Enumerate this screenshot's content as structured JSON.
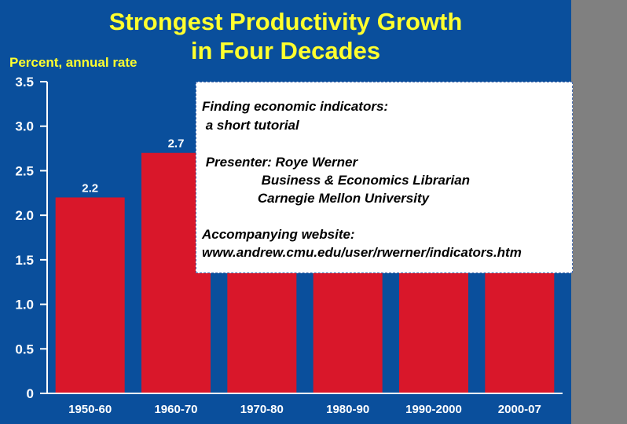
{
  "chart_data": {
    "type": "bar",
    "title": "Strongest Productivity Growth in Four Decades",
    "title_lines": [
      "Strongest Productivity Growth",
      "in Four Decades"
    ],
    "ylabel": "Percent, annual rate",
    "xlabel": "",
    "categories": [
      "1950-60",
      "1960-70",
      "1970-80",
      "1980-90",
      "1990-2000",
      "2000-07"
    ],
    "values": [
      2.2,
      2.7,
      1.4,
      1.4,
      1.4,
      1.4
    ],
    "value_labels": [
      "2.2",
      "2.7",
      "",
      "",
      "",
      ""
    ],
    "ylim": [
      0,
      3.5
    ],
    "yticks": [
      {
        "v": 0,
        "t": "0"
      },
      {
        "v": 0.5,
        "t": "0.5"
      },
      {
        "v": 1.0,
        "t": "1.0"
      },
      {
        "v": 1.5,
        "t": "1.5"
      },
      {
        "v": 2.0,
        "t": "2.0"
      },
      {
        "v": 2.5,
        "t": "2.5"
      },
      {
        "v": 3.0,
        "t": "3.0"
      },
      {
        "v": 3.5,
        "t": "3.5"
      }
    ],
    "grid": false,
    "bar_color": "#d9172a",
    "background_color": "#0a4f9c",
    "axis_color": "#ffffff",
    "title_color": "#ffff2e"
  },
  "overlay": {
    "lines": [
      "Finding economic indicators:",
      " a short tutorial",
      "",
      " Presenter: Roye Werner",
      "                Business & Economics Librarian",
      "               Carnegie Mellon University",
      "",
      "Accompanying website:",
      "www.andrew.cmu.edu/user/rwerner/indicators.htm"
    ]
  }
}
